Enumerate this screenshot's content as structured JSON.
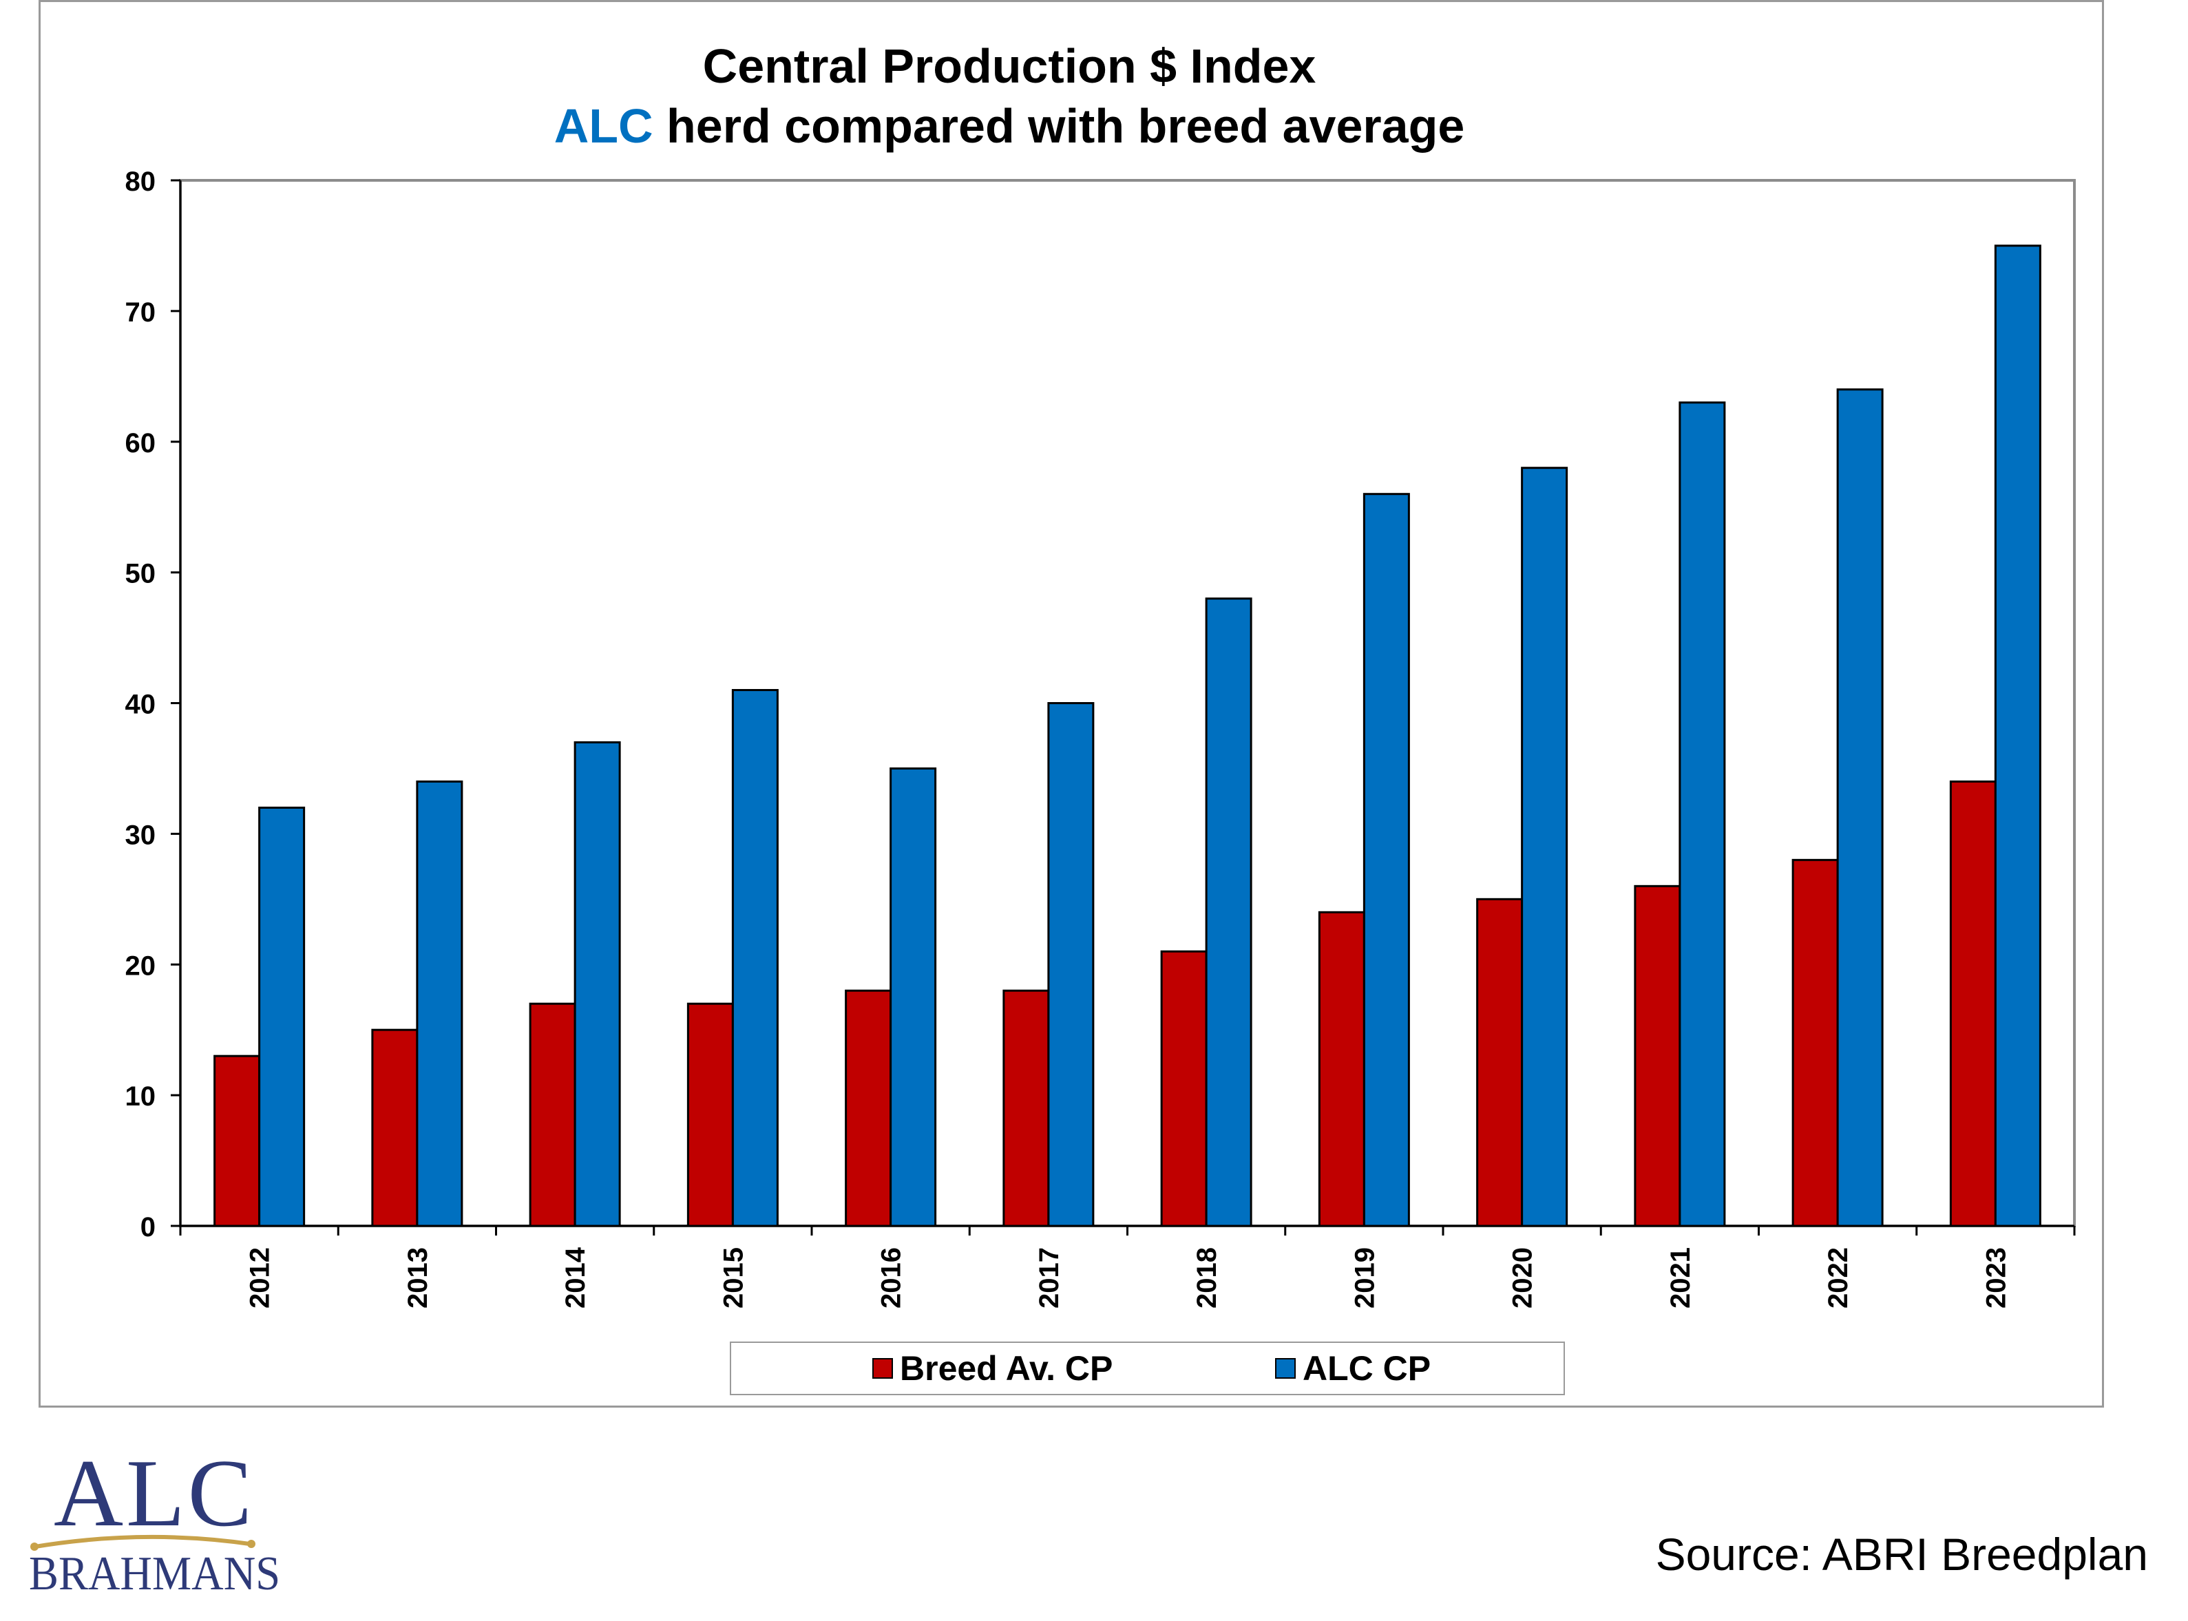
{
  "chart_data": {
    "type": "bar",
    "title_line1": "Central Production $ Index",
    "title_line2_accent": "ALC",
    "title_line2_rest": " herd compared with breed average",
    "categories": [
      "2012",
      "2013",
      "2014",
      "2015",
      "2016",
      "2017",
      "2018",
      "2019",
      "2020",
      "2021",
      "2022",
      "2023"
    ],
    "series": [
      {
        "name": "Breed Av. CP",
        "color": "#c00000",
        "values": [
          13,
          15,
          17,
          17,
          18,
          18,
          21,
          24,
          25,
          26,
          28,
          34
        ]
      },
      {
        "name": "ALC CP",
        "color": "#0070c0",
        "values": [
          32,
          34,
          37,
          41,
          35,
          40,
          48,
          56,
          58,
          63,
          64,
          75
        ]
      }
    ],
    "ylim": [
      0,
      80
    ],
    "yticks": [
      0,
      10,
      20,
      30,
      40,
      50,
      60,
      70,
      80
    ],
    "grid": false,
    "legend_position": "bottom",
    "accent_color": "#0070c0"
  },
  "logo": {
    "top": "ALC",
    "bottom": "BRAHMANS"
  },
  "source": "Source: ABRI Breedplan"
}
